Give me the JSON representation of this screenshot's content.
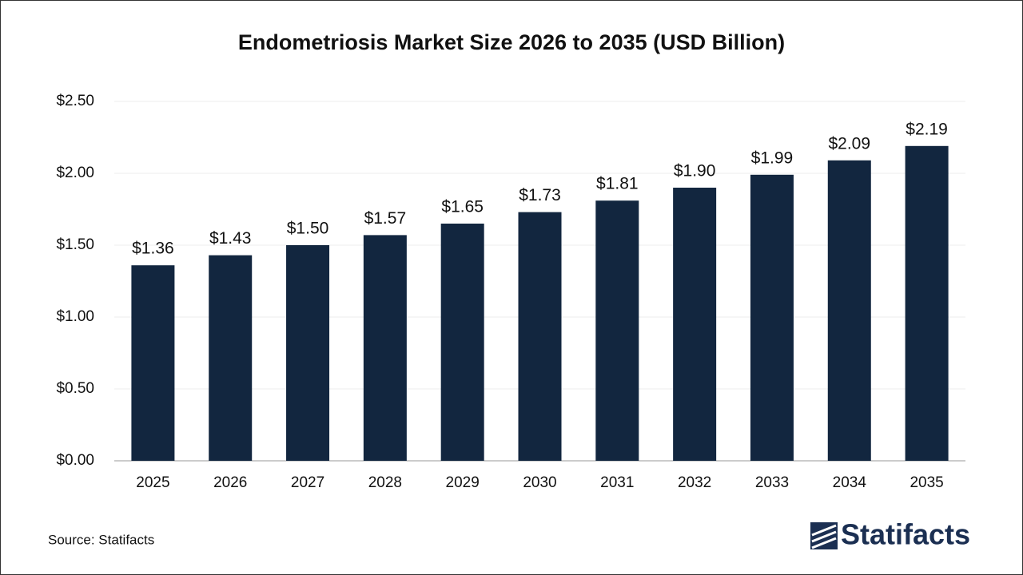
{
  "chart_data": {
    "type": "bar",
    "title": "Endometriosis Market Size 2026 to 2035 (USD Billion)",
    "categories": [
      "2025",
      "2026",
      "2027",
      "2028",
      "2029",
      "2030",
      "2031",
      "2032",
      "2033",
      "2034",
      "2035"
    ],
    "values": [
      1.36,
      1.43,
      1.5,
      1.57,
      1.65,
      1.73,
      1.81,
      1.9,
      1.99,
      2.09,
      2.19
    ],
    "value_labels": [
      "$1.36",
      "$1.43",
      "$1.50",
      "$1.57",
      "$1.65",
      "$1.73",
      "$1.81",
      "$1.90",
      "$1.99",
      "$2.09",
      "$2.19"
    ],
    "color": "#12263f",
    "ylim": [
      0,
      2.5
    ],
    "yticks": [
      {
        "value": 0,
        "label": "$0.00"
      },
      {
        "value": 0.5,
        "label": "$0.50"
      },
      {
        "value": 1,
        "label": "$1.00"
      },
      {
        "value": 1.5,
        "label": "$1.50"
      },
      {
        "value": 2,
        "label": "$2.00"
      },
      {
        "value": 2.5,
        "label": "$2.50"
      }
    ],
    "grid": true,
    "source": "Source: Statifacts",
    "brand": "Statifacts"
  }
}
